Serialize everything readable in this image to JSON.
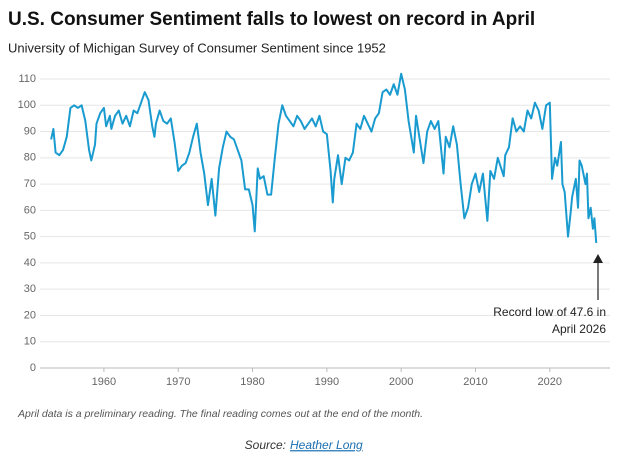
{
  "chart_data": {
    "type": "line",
    "title": "U.S. Consumer Sentiment falls to lowest on record in April",
    "subtitle": "University of Michigan Survey of Consumer Sentiment since 1952",
    "annotation": [
      "Record low of 47.6 in",
      "April 2026"
    ],
    "footnote": "April data is a preliminary reading. The final reading comes out at the end of the month.",
    "source_label": "Source:",
    "source_link": "Heather Long",
    "xlim": [
      1951.4,
      2028.1
    ],
    "xticks": [
      1960,
      1970,
      1980,
      1990,
      2000,
      2010,
      2020
    ],
    "ylim": [
      0,
      110
    ],
    "yticks": [
      0,
      10,
      20,
      30,
      40,
      50,
      60,
      70,
      80,
      90,
      100,
      110
    ],
    "grid": true,
    "x": [
      1952.9,
      1953.2,
      1953.5,
      1954,
      1954.5,
      1955,
      1955.5,
      1956,
      1956.5,
      1957,
      1957.5,
      1958,
      1958.3,
      1958.8,
      1959,
      1959.5,
      1960,
      1960.3,
      1960.8,
      1961,
      1961.5,
      1962,
      1962.5,
      1963,
      1963.5,
      1964,
      1964.5,
      1965,
      1965.5,
      1966,
      1966.5,
      1966.8,
      1967,
      1967.5,
      1968,
      1968.5,
      1969,
      1969.5,
      1970,
      1970.5,
      1971,
      1971.5,
      1972,
      1972.5,
      1973,
      1973.5,
      1974,
      1974.5,
      1975,
      1975.5,
      1976,
      1976.5,
      1977,
      1977.5,
      1978,
      1978.5,
      1979,
      1979.5,
      1980,
      1980.3,
      1980.7,
      1981,
      1981.5,
      1982,
      1982.5,
      1983,
      1983.5,
      1984,
      1984.5,
      1985,
      1985.5,
      1986,
      1986.5,
      1987,
      1987.5,
      1988,
      1988.5,
      1989,
      1989.5,
      1990,
      1990.5,
      1990.8,
      1991,
      1991.5,
      1992,
      1992.5,
      1993,
      1993.5,
      1994,
      1994.5,
      1995,
      1995.5,
      1996,
      1996.5,
      1997,
      1997.5,
      1998,
      1998.5,
      1999,
      1999.5,
      2000,
      2000.5,
      2001,
      2001.7,
      2002,
      2002.5,
      2003,
      2003.5,
      2004,
      2004.5,
      2005,
      2005.7,
      2006,
      2006.5,
      2007,
      2007.5,
      2008,
      2008.5,
      2009,
      2009.5,
      2010,
      2010.5,
      2011,
      2011.6,
      2012,
      2012.5,
      2013,
      2013.8,
      2014,
      2014.5,
      2015,
      2015.5,
      2016,
      2016.5,
      2017,
      2017.5,
      2018,
      2018.5,
      2019,
      2019.5,
      2020,
      2020.3,
      2020.7,
      2021,
      2021.5,
      2021.7,
      2022,
      2022.45,
      2022.8,
      2023,
      2023.5,
      2023.8,
      2024,
      2024.3,
      2024.8,
      2025,
      2025.2,
      2025.5,
      2025.8,
      2026,
      2026.25
    ],
    "series": [
      {
        "color": "#1a9bd0",
        "values": [
          87,
          91,
          82,
          81,
          83,
          88,
          99,
          100,
          99,
          100,
          94,
          83,
          79,
          85,
          93,
          97,
          99,
          92,
          96,
          91,
          96,
          98,
          93,
          96,
          92,
          98,
          97,
          101,
          105,
          102,
          92,
          88,
          93,
          98,
          94,
          93,
          95,
          86,
          75,
          77,
          78,
          82,
          88,
          93,
          82,
          74,
          62,
          72,
          58,
          76,
          84,
          90,
          88,
          87,
          83,
          79,
          68,
          68,
          62,
          52,
          76,
          72,
          73,
          66,
          66,
          80,
          93,
          100,
          96,
          94,
          92,
          96,
          94,
          91,
          93,
          95,
          92,
          96,
          90,
          89,
          75,
          63,
          72,
          81,
          70,
          80,
          79,
          82,
          93,
          91,
          96,
          93,
          90,
          95,
          97,
          105,
          106,
          104,
          108,
          104,
          112,
          106,
          94,
          82,
          96,
          87,
          78,
          90,
          94,
          91,
          94,
          74,
          88,
          84,
          92,
          85,
          70,
          57,
          61,
          70,
          74,
          67,
          74,
          56,
          75,
          72,
          80,
          73,
          81,
          84,
          95,
          90,
          92,
          90,
          98,
          95,
          101,
          98,
          91,
          100,
          101,
          72,
          80,
          77,
          86,
          70,
          67,
          50,
          59,
          65,
          72,
          61,
          79,
          77,
          70,
          74,
          57,
          61,
          53,
          57,
          47.6
        ]
      }
    ]
  }
}
